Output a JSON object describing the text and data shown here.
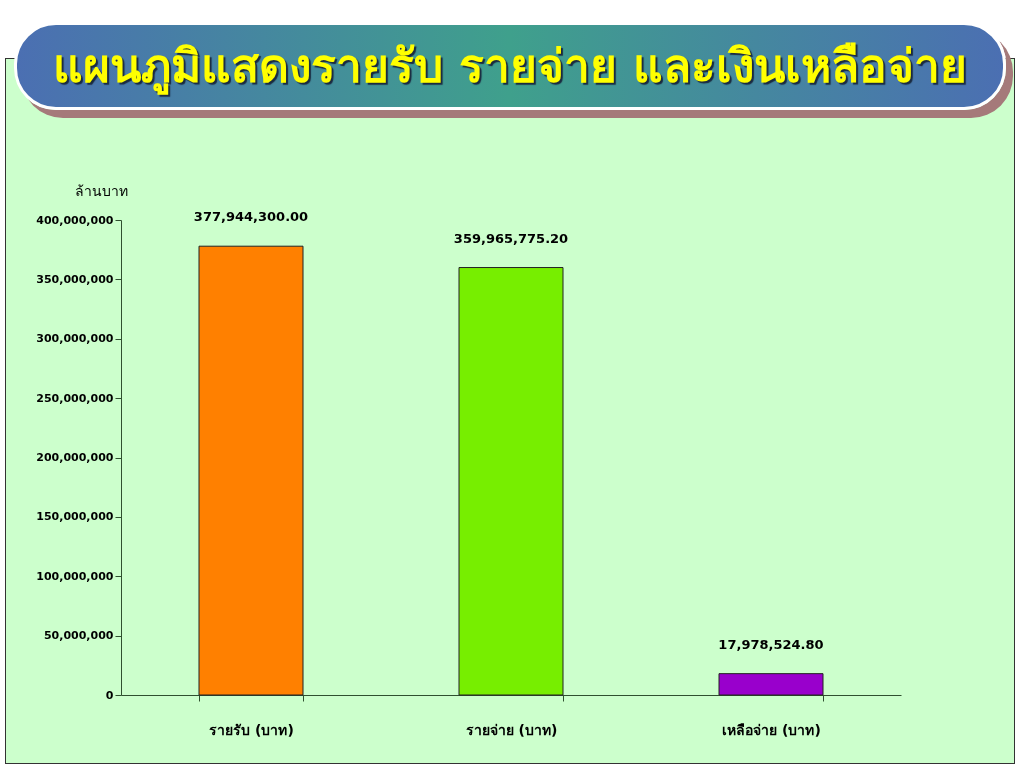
{
  "chart_data": {
    "type": "bar",
    "title": "แผนภูมิแสดงรายรับ รายจ่าย และเงินเหลือจ่าย",
    "ylabel": "ล้านบาท",
    "categories": [
      "รายรับ (บาท)",
      "รายจ่าย (บาท)",
      "เหลือจ่าย (บาท)"
    ],
    "values": [
      377944300,
      359965775.2,
      17978524.8
    ],
    "value_labels": [
      "377,944,300.00",
      "359,965,775.20",
      "17,978,524.80"
    ],
    "colors": [
      "#ff8000",
      "#77ee00",
      "#9900cc"
    ],
    "ylim": [
      0,
      400000000
    ],
    "yticks": [
      0,
      {
        "value": 50000000,
        "label": "50,000,000"
      },
      {
        "value": 100000000,
        "label": "100,000,000"
      },
      {
        "value": 150000000,
        "label": "150,000,000"
      },
      {
        "value": 200000000,
        "label": "200,000,000"
      },
      {
        "value": 250000000,
        "label": "250,000,000"
      },
      {
        "value": 300000000,
        "label": "300,000,000"
      },
      {
        "value": 350000000,
        "label": "350,000,000"
      },
      {
        "value": 400000000,
        "label": "400,000,000"
      }
    ],
    "grid": false,
    "legend": false
  }
}
